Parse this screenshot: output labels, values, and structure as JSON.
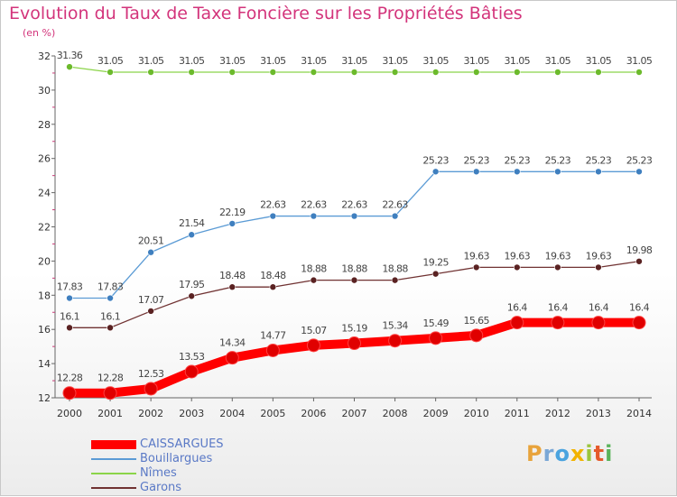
{
  "chart_data": {
    "type": "line",
    "title": "Evolution du Taux de Taxe Foncière sur les Propriétés Bâties",
    "ylabel": "(en %)",
    "xlabel": "",
    "ylim": [
      12,
      32
    ],
    "yticks": [
      12,
      14,
      16,
      18,
      20,
      22,
      24,
      26,
      28,
      30,
      32
    ],
    "categories": [
      "2000",
      "2001",
      "2002",
      "2003",
      "2004",
      "2005",
      "2006",
      "2007",
      "2008",
      "2009",
      "2010",
      "2011",
      "2012",
      "2013",
      "2014"
    ],
    "series": [
      {
        "name": "CAISSARGUES",
        "color": "#ff0000",
        "values": [
          12.28,
          12.28,
          12.53,
          13.53,
          14.34,
          14.77,
          15.07,
          15.19,
          15.34,
          15.49,
          15.65,
          16.4,
          16.4,
          16.4,
          16.4
        ]
      },
      {
        "name": "Bouillargues",
        "color": "#5b9bd5",
        "values": [
          17.83,
          17.83,
          20.51,
          21.54,
          22.19,
          22.63,
          22.63,
          22.63,
          22.63,
          25.23,
          25.23,
          25.23,
          25.23,
          25.23,
          25.23
        ]
      },
      {
        "name": "Nîmes",
        "color": "#8bd449",
        "values": [
          31.36,
          31.05,
          31.05,
          31.05,
          31.05,
          31.05,
          31.05,
          31.05,
          31.05,
          31.05,
          31.05,
          31.05,
          31.05,
          31.05,
          31.05
        ]
      },
      {
        "name": "Garons",
        "color": "#703232",
        "values": [
          16.1,
          16.1,
          17.07,
          17.95,
          18.48,
          18.48,
          18.88,
          18.88,
          18.88,
          19.25,
          19.63,
          19.63,
          19.63,
          19.63,
          19.98
        ]
      }
    ],
    "value_labels": [
      [
        "12.28",
        "12.28",
        "12.53",
        "13.53",
        "14.34",
        "14.77",
        "15.07",
        "15.19",
        "15.34",
        "15.49",
        "15.65",
        "16.4",
        "16.4",
        "16.4",
        "16.4"
      ],
      [
        "17.83",
        "17.83",
        "20.51",
        "21.54",
        "22.19",
        "22.63",
        "22.63",
        "22.63",
        "22.63",
        "25.23",
        "25.23",
        "25.23",
        "25.23",
        "25.23",
        "25.23"
      ],
      [
        "31.36",
        "31.05",
        "31.05",
        "31.05",
        "31.05",
        "31.05",
        "31.05",
        "31.05",
        "31.05",
        "31.05",
        "31.05",
        "31.05",
        "31.05",
        "31.05",
        "31.05"
      ],
      [
        "16.1",
        "16.1",
        "17.07",
        "17.95",
        "18.48",
        "18.48",
        "18.88",
        "18.88",
        "18.88",
        "19.25",
        "19.63",
        "19.63",
        "19.63",
        "19.63",
        "19.98"
      ]
    ],
    "legend_position": "bottom-left",
    "grid": false
  },
  "brand": {
    "letters": [
      "P",
      "r",
      "o",
      "x",
      "i",
      "t",
      "i"
    ],
    "colors": [
      "#e8a33b",
      "#7aa7d6",
      "#4aa3df",
      "#f2b300",
      "#9bc53d",
      "#e55a2b",
      "#5ab35a"
    ]
  }
}
